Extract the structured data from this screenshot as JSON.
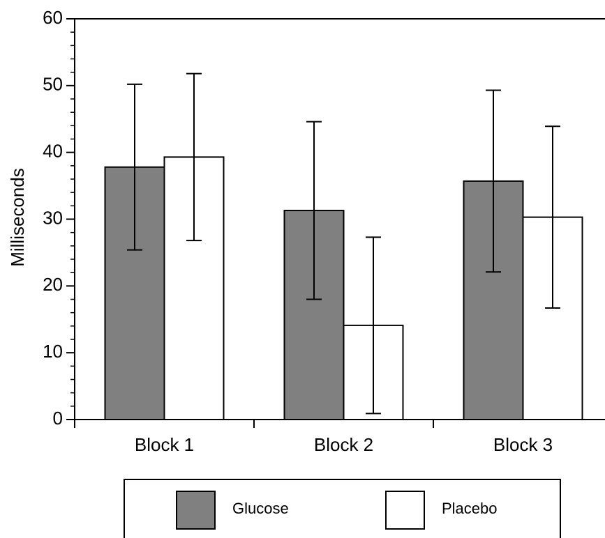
{
  "chart_data": {
    "type": "bar",
    "y_label": "Milliseconds",
    "categories": [
      "Block 1",
      "Block 2",
      "Block 3"
    ],
    "series": [
      {
        "name": "Glucose",
        "color": "#808080",
        "values": [
          37.8,
          31.3,
          35.7
        ],
        "errors": [
          12.4,
          13.3,
          13.6
        ]
      },
      {
        "name": "Placebo",
        "color": "#ffffff",
        "values": [
          39.3,
          14.1,
          30.3
        ],
        "errors": [
          12.5,
          13.2,
          13.6
        ]
      }
    ],
    "ylim": [
      0,
      60
    ],
    "yticks": [
      0,
      10,
      20,
      30,
      40,
      50,
      60
    ],
    "yminorticks": [
      2,
      4,
      6,
      8,
      12,
      14,
      16,
      18,
      22,
      24,
      26,
      28,
      32,
      34,
      36,
      38,
      42,
      44,
      46,
      48,
      52,
      54,
      56,
      58
    ],
    "legend": "bottom"
  }
}
